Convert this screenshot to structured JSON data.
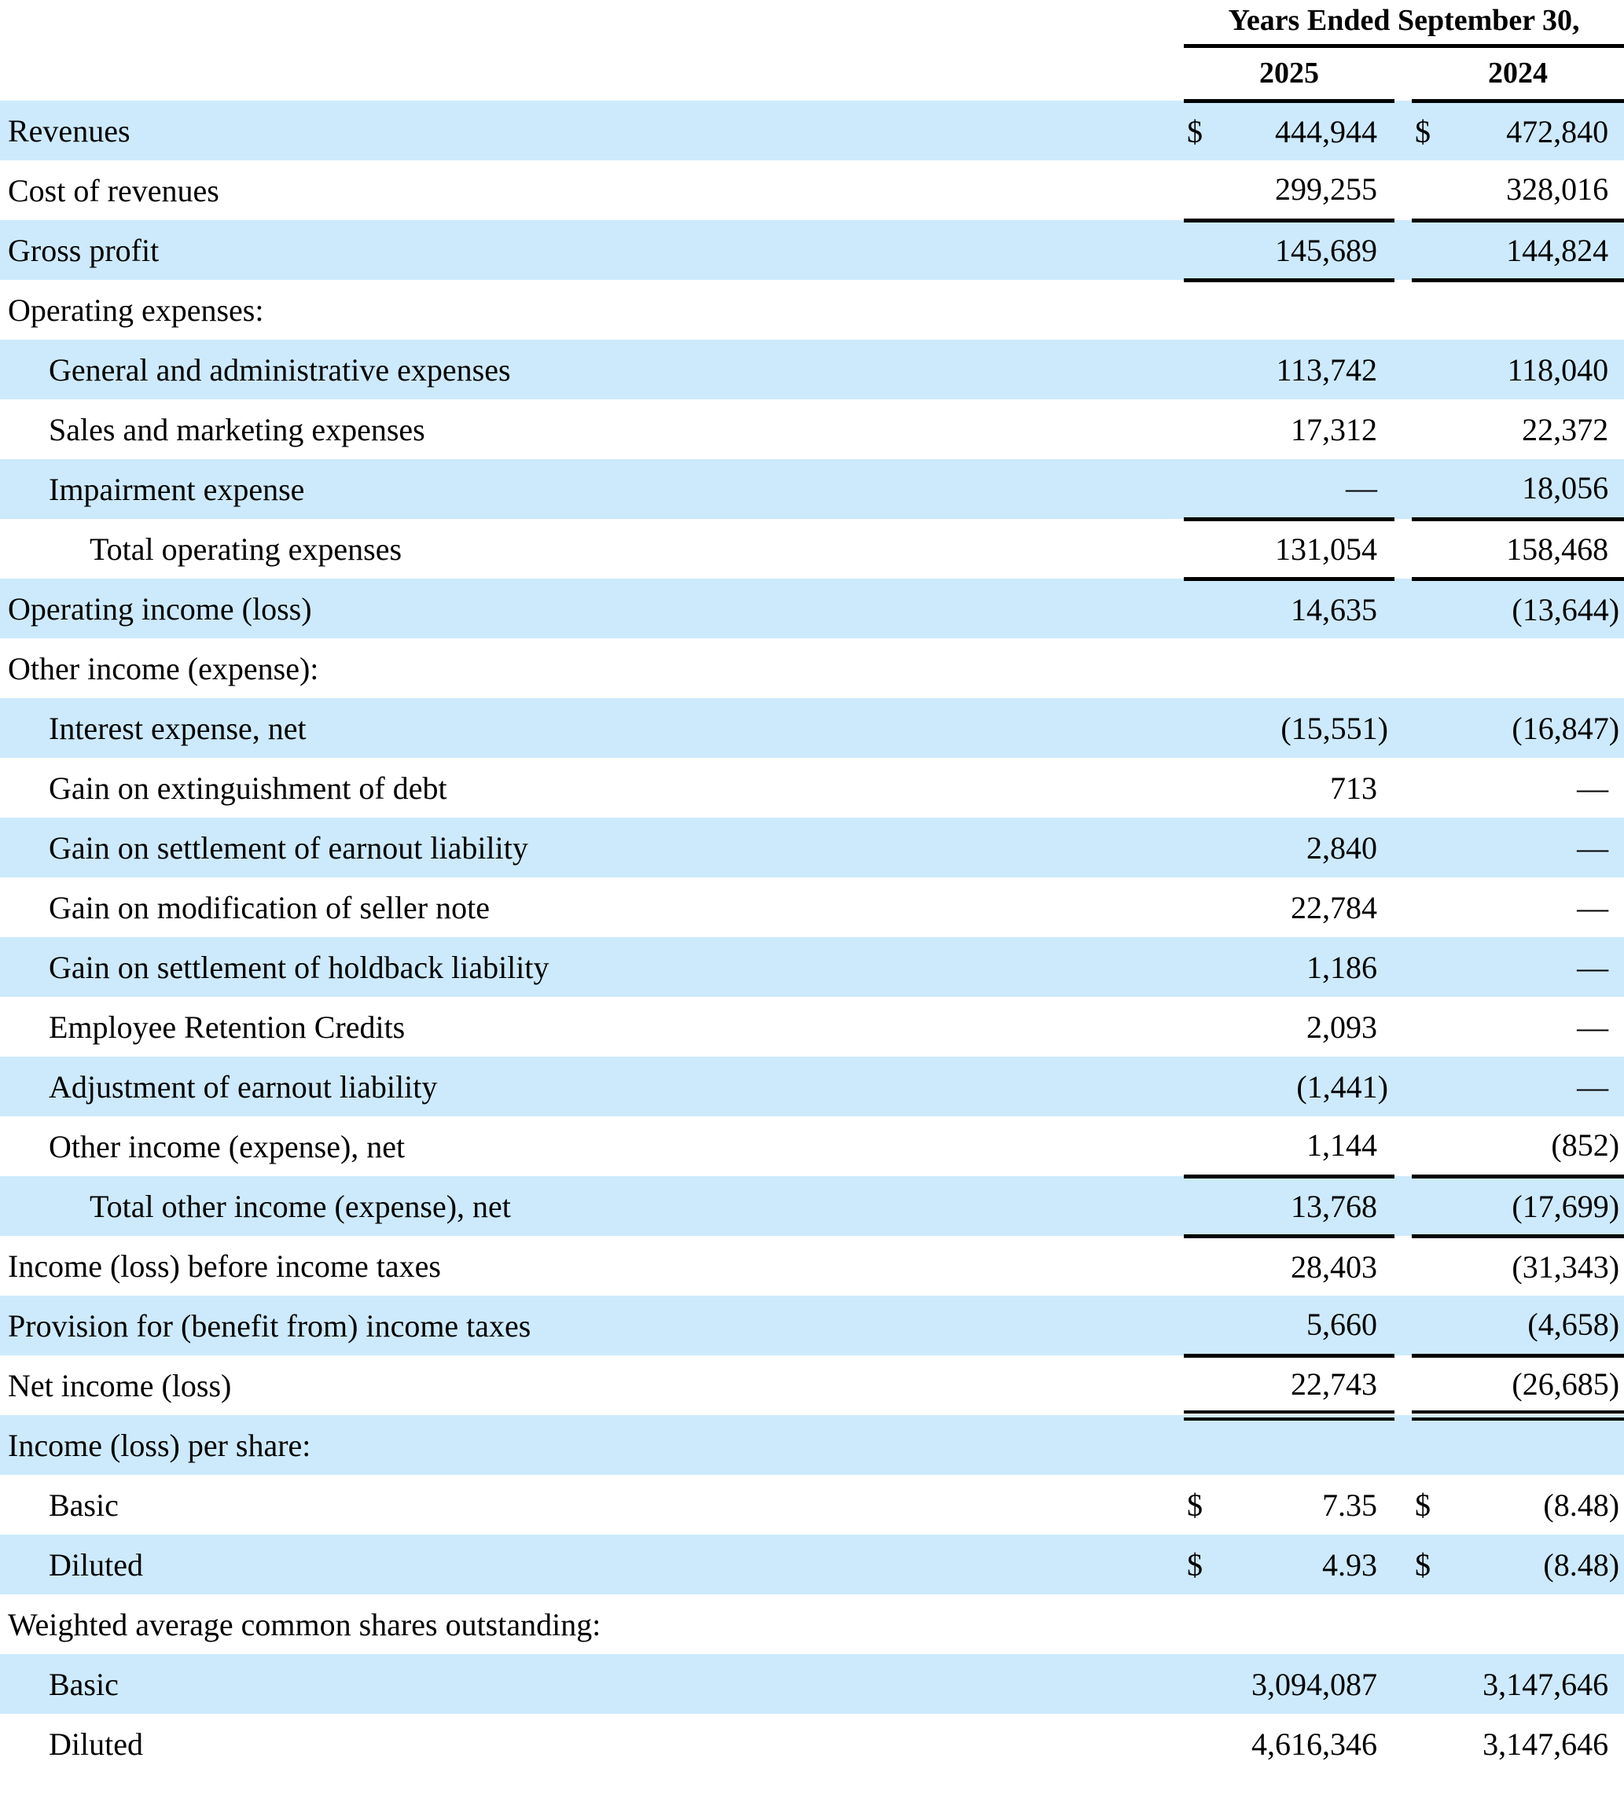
{
  "table": {
    "header": {
      "period_label": "Years Ended September 30,",
      "col_2025": "2025",
      "col_2024": "2024"
    },
    "colors": {
      "row_stripe": "#cdeafc",
      "text": "#000000",
      "rule": "#000000"
    },
    "rows": [
      {
        "label": "Revenues",
        "indent": 0,
        "d1": "$",
        "v1": "444,944",
        "d2": "$",
        "v2": "472,840"
      },
      {
        "label": "Cost of revenues",
        "indent": 0,
        "v1": "299,255",
        "v2": "328,016",
        "rule_below": true
      },
      {
        "label": "Gross profit",
        "indent": 0,
        "v1": "145,689",
        "v2": "144,824",
        "rule_below": true
      },
      {
        "label": "Operating expenses:",
        "indent": 0
      },
      {
        "label": "General and administrative expenses",
        "indent": 1,
        "v1": "113,742",
        "v2": "118,040"
      },
      {
        "label": "Sales and marketing expenses",
        "indent": 1,
        "v1": "17,312",
        "v2": "22,372"
      },
      {
        "label": "Impairment expense",
        "indent": 1,
        "v1": "—",
        "v2": "18,056",
        "rule_below": true
      },
      {
        "label": "Total operating expenses",
        "indent": 2,
        "v1": "131,054",
        "v2": "158,468",
        "rule_below": true
      },
      {
        "label": "Operating income (loss)",
        "indent": 0,
        "v1": "14,635",
        "v2": "(13,644)"
      },
      {
        "label": "Other income (expense):",
        "indent": 0
      },
      {
        "label": "Interest expense, net",
        "indent": 1,
        "v1": "(15,551)",
        "v2": "(16,847)"
      },
      {
        "label": "Gain on extinguishment of debt",
        "indent": 1,
        "v1": "713",
        "v2": "—"
      },
      {
        "label": "Gain on settlement of earnout liability",
        "indent": 1,
        "v1": "2,840",
        "v2": "—"
      },
      {
        "label": "Gain on modification of seller note",
        "indent": 1,
        "v1": "22,784",
        "v2": "—"
      },
      {
        "label": "Gain on settlement of holdback liability",
        "indent": 1,
        "v1": "1,186",
        "v2": "—"
      },
      {
        "label": "Employee Retention Credits",
        "indent": 1,
        "v1": "2,093",
        "v2": "—"
      },
      {
        "label": "Adjustment of earnout liability",
        "indent": 1,
        "v1": "(1,441)",
        "v2": "—"
      },
      {
        "label": "Other income (expense), net",
        "indent": 1,
        "v1": "1,144",
        "v2": "(852)",
        "rule_below": true
      },
      {
        "label": "Total other income (expense), net",
        "indent": 2,
        "v1": "13,768",
        "v2": "(17,699)",
        "rule_below": true
      },
      {
        "label": "Income (loss) before income taxes",
        "indent": 0,
        "v1": "28,403",
        "v2": "(31,343)"
      },
      {
        "label": "Provision for (benefit from) income taxes",
        "indent": 0,
        "v1": "5,660",
        "v2": "(4,658)",
        "rule_below": true
      },
      {
        "label": "Net income (loss)",
        "indent": 0,
        "v1": "22,743",
        "v2": "(26,685)",
        "double_below": true
      },
      {
        "label": "Income (loss) per share:",
        "indent": 0
      },
      {
        "label": "Basic",
        "indent": 1,
        "d1": "$",
        "v1": "7.35",
        "d2": "$",
        "v2": "(8.48)"
      },
      {
        "label": "Diluted",
        "indent": 1,
        "d1": "$",
        "v1": "4.93",
        "d2": "$",
        "v2": "(8.48)"
      },
      {
        "label": "Weighted average common shares outstanding:",
        "indent": 0
      },
      {
        "label": "Basic",
        "indent": 1,
        "v1": "3,094,087",
        "v2": "3,147,646"
      },
      {
        "label": "Diluted",
        "indent": 1,
        "v1": "4,616,346",
        "v2": "3,147,646"
      }
    ]
  }
}
